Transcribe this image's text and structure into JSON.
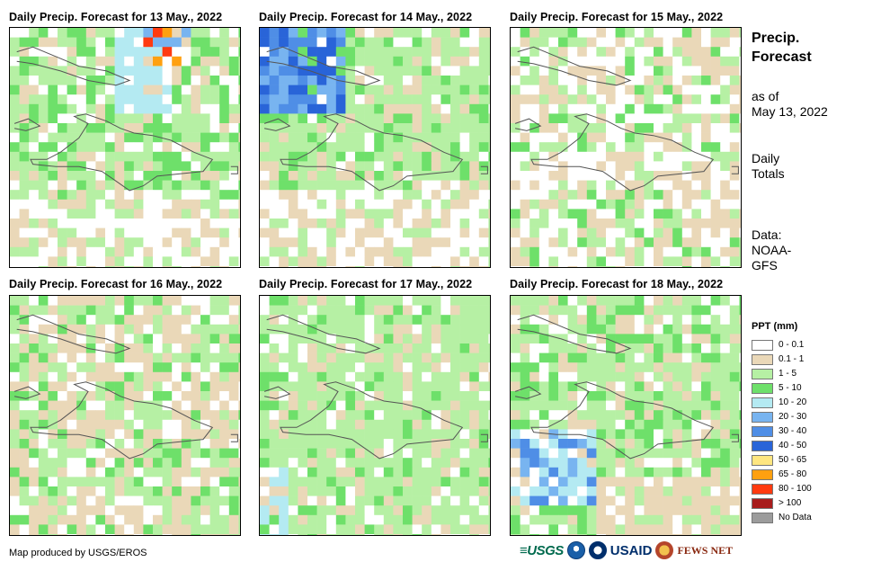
{
  "panels": [
    {
      "title": "Daily Precip. Forecast for 13 May., 2022"
    },
    {
      "title": "Daily Precip. Forecast for 14 May., 2022"
    },
    {
      "title": "Daily Precip. Forecast for 15 May., 2022"
    },
    {
      "title": "Daily Precip. Forecast for 16 May., 2022"
    },
    {
      "title": "Daily Precip. Forecast for 17 May., 2022"
    },
    {
      "title": "Daily Precip. Forecast for 18 May., 2022"
    }
  ],
  "sidebar": {
    "title_line1": "Precip.",
    "title_line2": "Forecast",
    "asof_line1": "as of",
    "asof_line2": "May 13, 2022",
    "totals_line1": "Daily",
    "totals_line2": "Totals",
    "data_line1": "Data:",
    "data_line2": "NOAA-",
    "data_line3": "GFS"
  },
  "legend": {
    "title": "PPT (mm)",
    "items": [
      {
        "label": "0 - 0.1",
        "color": "#ffffff"
      },
      {
        "label": "0.1 - 1",
        "color": "#ead8b8"
      },
      {
        "label": "1 - 5",
        "color": "#b6f0a4"
      },
      {
        "label": "5 - 10",
        "color": "#6ee06a"
      },
      {
        "label": "10 - 20",
        "color": "#b4eaf2"
      },
      {
        "label": "20 - 30",
        "color": "#78b4f0"
      },
      {
        "label": "30 - 40",
        "color": "#4f8ee6"
      },
      {
        "label": "40 - 50",
        "color": "#2964d8"
      },
      {
        "label": "50 - 65",
        "color": "#ffe680"
      },
      {
        "label": "65 - 80",
        "color": "#ffa010"
      },
      {
        "label": "80 - 100",
        "color": "#ff3a10"
      },
      {
        "label": "> 100",
        "color": "#a81c1c"
      },
      {
        "label": "No Data",
        "color": "#9c9c9c"
      }
    ]
  },
  "footer": {
    "credit": "Map produced by USGS/EROS",
    "logos": {
      "usgs": "≡USGS",
      "usaid": "USAID",
      "fews": "FEWS NET"
    }
  }
}
